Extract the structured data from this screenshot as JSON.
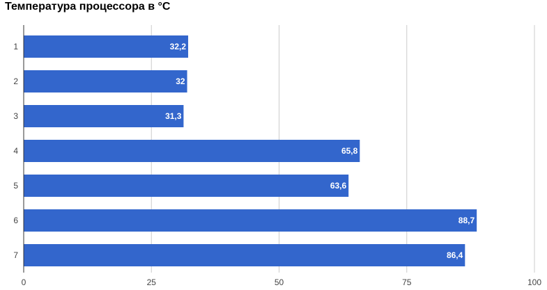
{
  "chart_data": {
    "type": "bar",
    "orientation": "horizontal",
    "title": "Температура процессора в °C",
    "categories": [
      "1",
      "2",
      "3",
      "4",
      "5",
      "6",
      "7"
    ],
    "values": [
      32.2,
      32,
      31.3,
      65.8,
      63.6,
      88.7,
      86.4
    ],
    "data_labels": [
      "32,2",
      "32",
      "31,3",
      "65,8",
      "63,6",
      "88,7",
      "86,4"
    ],
    "x_ticks": [
      "0",
      "25",
      "50",
      "75",
      "100"
    ],
    "xlim": [
      0,
      100
    ],
    "xlabel": "",
    "ylabel": "",
    "grid": true,
    "legend": "none",
    "colors": {
      "bar": "#3366cc",
      "grid": "#cccccc",
      "axis": "#333333"
    }
  }
}
